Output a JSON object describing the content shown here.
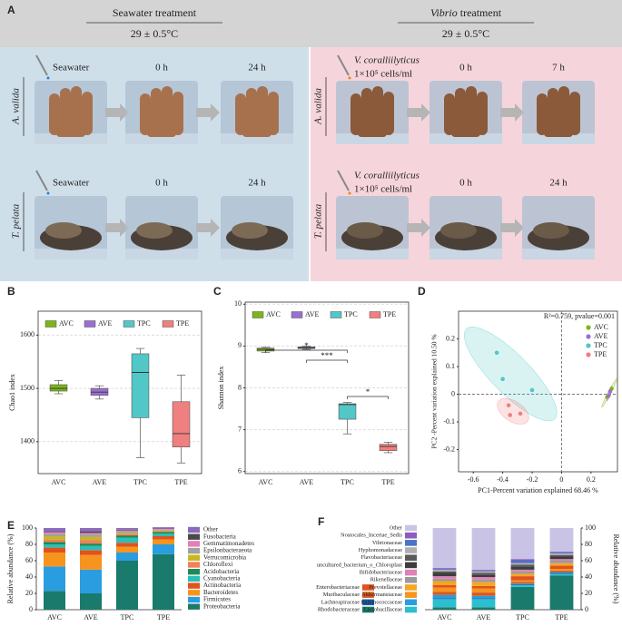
{
  "panel_a": {
    "label": "A",
    "treatments": [
      {
        "title": [
          "Seawater treatment"
        ],
        "temperature": "29 ± 0.5°C"
      },
      {
        "title": [
          "Vibrio",
          " treatment"
        ],
        "temperature": "29 ± 0.5°C"
      }
    ],
    "rows": [
      {
        "species": "A. valida",
        "cells": [
          {
            "label": "Seawater"
          },
          {
            "label": "0 h"
          },
          {
            "label": "24 h"
          },
          {
            "label": "V. coralliilyticus",
            "sublabel": "1×10⁵ cells/ml"
          },
          {
            "label": "0 h"
          },
          {
            "label": "7 h"
          }
        ]
      },
      {
        "species": "T. pelata",
        "cells": [
          {
            "label": "Seawater"
          },
          {
            "label": "0 h"
          },
          {
            "label": "24 h"
          },
          {
            "label": "V. coralliilyticus",
            "sublabel": "1×10⁵ cells/ml"
          },
          {
            "label": "0 h"
          },
          {
            "label": "24 h"
          }
        ]
      }
    ]
  },
  "chart_data": [
    {
      "panel": "B",
      "type": "box",
      "ylabel": "Chao1 index",
      "ylim": [
        1340,
        1645
      ],
      "yticks": [
        1400,
        1500,
        1600
      ],
      "grid": true,
      "boxes": [
        {
          "name": "AVC",
          "color": "#7cb518",
          "min": 1490,
          "q1": 1495,
          "median": 1500,
          "q3": 1507,
          "max": 1515
        },
        {
          "name": "AVE",
          "color": "#9b6fd0",
          "min": 1480,
          "q1": 1487,
          "median": 1493,
          "q3": 1500,
          "max": 1505
        },
        {
          "name": "TPC",
          "color": "#52c7c7",
          "min": 1370,
          "q1": 1445,
          "median": 1530,
          "q3": 1565,
          "max": 1575
        },
        {
          "name": "TPE",
          "color": "#f07f7f",
          "min": 1360,
          "q1": 1390,
          "median": 1415,
          "q3": 1475,
          "max": 1525
        }
      ]
    },
    {
      "panel": "C",
      "type": "box",
      "ylabel": "Shannon index",
      "ylim": [
        5.95,
        10.05
      ],
      "yticks": [
        6,
        7,
        8,
        9,
        10
      ],
      "grid": true,
      "boxes": [
        {
          "name": "AVC",
          "color": "#7cb518",
          "min": 8.85,
          "q1": 8.88,
          "median": 8.92,
          "q3": 8.95,
          "max": 8.97
        },
        {
          "name": "AVE",
          "color": "#9b6fd0",
          "min": 8.92,
          "q1": 8.94,
          "median": 8.96,
          "q3": 8.98,
          "max": 9.0
        },
        {
          "name": "TPC",
          "color": "#52c7c7",
          "min": 6.9,
          "q1": 7.25,
          "median": 7.6,
          "q3": 7.62,
          "max": 7.65
        },
        {
          "name": "TPE",
          "color": "#f07f7f",
          "min": 6.45,
          "q1": 6.5,
          "median": 6.6,
          "q3": 6.65,
          "max": 6.7
        }
      ],
      "significance": [
        {
          "pair": [
            "AVC",
            "TPC"
          ],
          "label": "*"
        },
        {
          "pair": [
            "AVE",
            "TPC"
          ],
          "label": "***"
        },
        {
          "pair": [
            "TPC",
            "TPE"
          ],
          "label": "*"
        }
      ]
    },
    {
      "panel": "D",
      "type": "scatter",
      "xlabel": "PC1-Percent variation explained 68.46 %",
      "ylabel": "PC2 -Percent variation explained 10.50 %",
      "annotation": "R²=0.759, pvalue=0.001",
      "xlim": [
        -0.7,
        0.38
      ],
      "ylim": [
        -0.28,
        0.3
      ],
      "xticks": [
        -0.6,
        -0.4,
        -0.2,
        0,
        0.2
      ],
      "yticks": [
        -0.2,
        -0.1,
        0,
        0.1,
        0.2
      ],
      "legend": "upper right",
      "series": [
        {
          "name": "AVC",
          "color": "#7cb518",
          "x": [
            0.34,
            0.31
          ],
          "y": [
            0.02,
            -0.01
          ]
        },
        {
          "name": "AVE",
          "color": "#9b6fd0",
          "x": [
            0.33,
            0.32
          ],
          "y": [
            0.01,
            -0.005
          ]
        },
        {
          "name": "TPC",
          "color": "#52c7c7",
          "x": [
            -0.44,
            -0.4,
            -0.2
          ],
          "y": [
            0.15,
            0.055,
            0.015
          ]
        },
        {
          "name": "TPE",
          "color": "#f07f7f",
          "x": [
            -0.36,
            -0.35,
            -0.28
          ],
          "y": [
            -0.04,
            -0.075,
            -0.07
          ]
        }
      ]
    },
    {
      "panel": "E",
      "type": "stacked_bar",
      "ylabel": "Relative abundance (%)",
      "categories": [
        "AVC",
        "AVE",
        "TPC",
        "TPE"
      ],
      "ylim": [
        0,
        100
      ],
      "yticks": [
        0,
        20,
        40,
        60,
        80,
        100
      ],
      "legend": "right",
      "y_axis": "left",
      "series": [
        {
          "name": "Proteobacteria",
          "color": "#1a7a6c",
          "values": [
            23,
            20,
            60,
            68
          ]
        },
        {
          "name": "Firmicutes",
          "color": "#2a9de0",
          "values": [
            30,
            29,
            10,
            12
          ]
        },
        {
          "name": "Bacteroidetes",
          "color": "#f7941d",
          "values": [
            17,
            18,
            7,
            6
          ]
        },
        {
          "name": "Actinobacteria",
          "color": "#e0531c",
          "values": [
            6,
            6,
            5,
            4
          ]
        },
        {
          "name": "Cyanobacteria",
          "color": "#2bbfb8",
          "values": [
            4,
            5,
            6,
            3
          ]
        },
        {
          "name": "Acidobacteria",
          "color": "#1f8a57",
          "values": [
            3,
            3,
            3,
            2
          ]
        },
        {
          "name": "Chloroflexi",
          "color": "#f47f5a",
          "values": [
            3,
            4,
            2,
            1
          ]
        },
        {
          "name": "Verrucomicrobia",
          "color": "#c8b820",
          "values": [
            4,
            4,
            1,
            1
          ]
        },
        {
          "name": "Epsilonbacteraeota",
          "color": "#a0a0a0",
          "values": [
            3,
            3,
            2,
            1
          ]
        },
        {
          "name": "Gemmatimonadetes",
          "color": "#e57fb8",
          "values": [
            2,
            2,
            1,
            1
          ]
        },
        {
          "name": "Fusobacteria",
          "color": "#4a4a4a",
          "values": [
            1,
            2,
            1,
            0.5
          ]
        },
        {
          "name": "Other",
          "color": "#8c6bbf",
          "values": [
            4,
            4,
            2,
            1.5
          ]
        }
      ]
    },
    {
      "panel": "F",
      "type": "stacked_bar",
      "ylabel": "Relative abundance (%)",
      "categories": [
        "AVC",
        "AVE",
        "TPC",
        "TPE"
      ],
      "ylim": [
        0,
        100
      ],
      "yticks": [
        0,
        20,
        40,
        60,
        80,
        100
      ],
      "legend": "left",
      "y_axis": "right",
      "series": [
        {
          "name": "Rhodobacteraceae",
          "color": "#1a7a6c",
          "values": [
            3,
            3,
            28,
            42
          ]
        },
        {
          "name": "Lactobacillaceae",
          "color": "#2bbfcf",
          "values": [
            10,
            10,
            2,
            2
          ]
        },
        {
          "name": "Lachnospiraceae",
          "color": "#1f5aa8",
          "values": [
            1,
            1,
            1,
            1
          ]
        },
        {
          "name": "Ruminococcaceae",
          "color": "#2a9de0",
          "values": [
            4,
            3,
            1,
            1
          ]
        },
        {
          "name": "Muribaculaceae",
          "color": "#d65a1e",
          "values": [
            4,
            4,
            2,
            2
          ]
        },
        {
          "name": "Akkermansiaceae",
          "color": "#f7941d",
          "values": [
            5,
            5,
            2,
            2
          ]
        },
        {
          "name": "Enterobacteriaceae",
          "color": "#e0531c",
          "values": [
            3,
            3,
            5,
            4
          ]
        },
        {
          "name": "Prevotellaceae",
          "color": "#f5a623",
          "values": [
            5,
            5,
            3,
            3
          ]
        },
        {
          "name": "Rikenellaceae",
          "color": "#9a9a9a",
          "values": [
            3,
            3,
            3,
            3
          ]
        },
        {
          "name": "Bifidobacteriaceae",
          "color": "#e07fb8",
          "values": [
            3,
            3,
            2,
            2
          ]
        },
        {
          "name": "uncultured_bacterium_o_Chloroplast",
          "color": "#3d3d3d",
          "values": [
            4,
            3,
            4,
            3
          ]
        },
        {
          "name": "Flavobacteriaceae",
          "color": "#5a5a5a",
          "values": [
            2,
            2,
            2,
            2
          ]
        },
        {
          "name": "Hyphomonadaceae",
          "color": "#b0b0b0",
          "values": [
            2,
            2,
            2,
            2
          ]
        },
        {
          "name": "Vibrionaceae",
          "color": "#4a74c4",
          "values": [
            1,
            1,
            3,
            1
          ]
        },
        {
          "name": "Nostocales_Incertae_Sedis",
          "color": "#8c5bbf",
          "values": [
            1,
            1,
            2,
            1
          ]
        },
        {
          "name": "Other",
          "color": "#c9c3e6",
          "values": [
            49,
            51,
            38,
            29
          ]
        }
      ]
    }
  ]
}
